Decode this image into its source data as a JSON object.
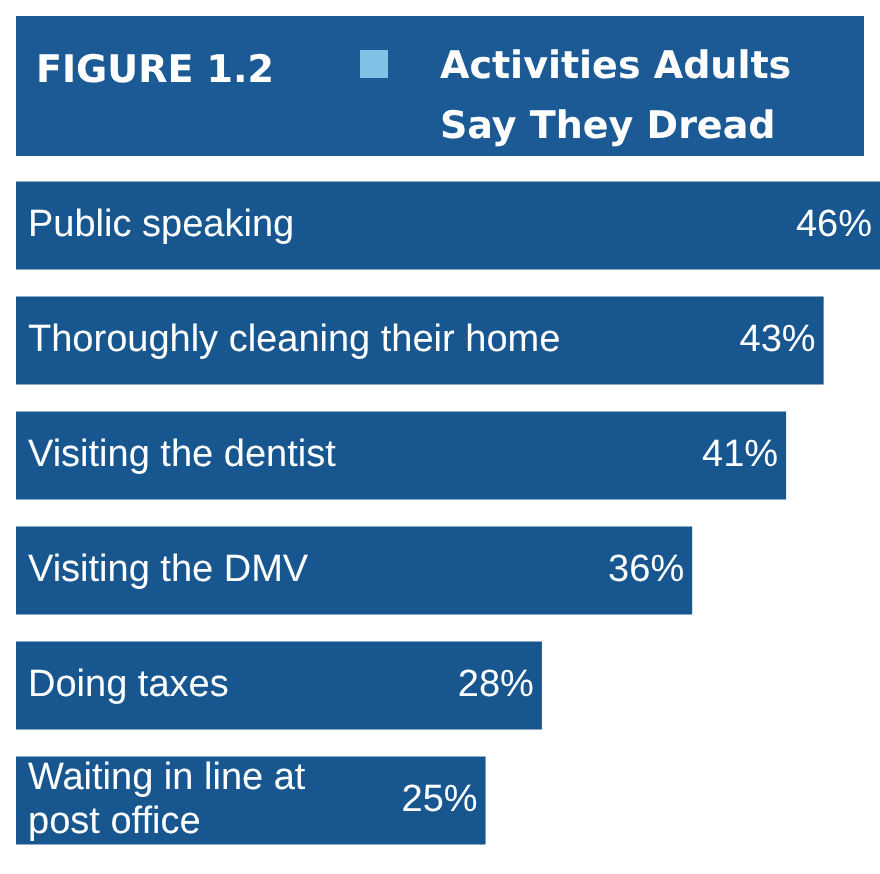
{
  "chart_data": {
    "type": "bar",
    "orientation": "horizontal",
    "title": "Activities Adults Say They Dread",
    "annotations": [
      "FIGURE 1.2"
    ],
    "categories": [
      "Public speaking",
      "Thoroughly cleaning their home",
      "Visiting the dentist",
      "Visiting the DMV",
      "Doing taxes",
      "Waiting in line at post office"
    ],
    "values": [
      46,
      43,
      41,
      36,
      28,
      25
    ],
    "value_labels": [
      "46%",
      "43%",
      "41%",
      "36%",
      "28%",
      "25%"
    ],
    "color": "#17568f",
    "legend": false
  }
}
